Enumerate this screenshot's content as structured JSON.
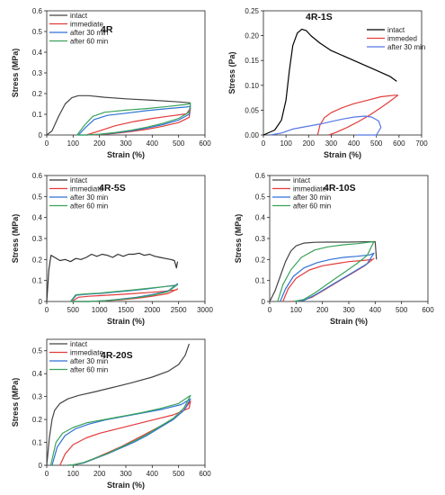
{
  "chart_data": [
    {
      "type": "line",
      "panel_label": "4R",
      "xlabel": "Strain (%)",
      "ylabel": "Stress (MPa)",
      "xlim": [
        0,
        600
      ],
      "ylim": [
        0,
        0.6
      ],
      "xticks": [
        0,
        100,
        200,
        300,
        400,
        500,
        600
      ],
      "yticks": [
        0,
        0.1,
        0.2,
        0.3,
        0.4,
        0.5,
        0.6
      ],
      "legend_position": "top-left",
      "series": [
        {
          "name": "intact",
          "color": "#444444",
          "x": [
            0,
            20,
            45,
            70,
            95,
            120,
            160,
            220,
            300,
            400,
            500,
            545
          ],
          "y": [
            0,
            0.02,
            0.09,
            0.15,
            0.18,
            0.19,
            0.19,
            0.182,
            0.175,
            0.168,
            0.16,
            0.155
          ]
        },
        {
          "name": "immediate",
          "color": "#e23b3b",
          "x": [
            150,
            200,
            260,
            330,
            400,
            470,
            530,
            545,
            540,
            500,
            440,
            380,
            320,
            260,
            200,
            150
          ],
          "y": [
            0,
            0.02,
            0.045,
            0.065,
            0.08,
            0.092,
            0.102,
            0.13,
            0.085,
            0.06,
            0.042,
            0.028,
            0.017,
            0.008,
            0.002,
            0
          ]
        },
        {
          "name": "after 30 min",
          "color": "#2f72d6",
          "x": [
            120,
            150,
            180,
            230,
            300,
            380,
            460,
            530,
            545,
            540,
            500,
            440,
            380,
            320,
            260,
            200,
            150,
            120
          ],
          "y": [
            0,
            0.04,
            0.075,
            0.095,
            0.105,
            0.118,
            0.128,
            0.135,
            0.14,
            0.1,
            0.072,
            0.05,
            0.034,
            0.02,
            0.01,
            0.003,
            0,
            0
          ]
        },
        {
          "name": "after 60 min",
          "color": "#3aa35a",
          "x": [
            115,
            145,
            175,
            220,
            300,
            380,
            460,
            530,
            545,
            540,
            500,
            440,
            380,
            320,
            260,
            200,
            150,
            115
          ],
          "y": [
            0,
            0.05,
            0.09,
            0.11,
            0.12,
            0.128,
            0.138,
            0.148,
            0.152,
            0.11,
            0.08,
            0.056,
            0.038,
            0.023,
            0.012,
            0.004,
            0,
            0
          ]
        }
      ]
    },
    {
      "type": "line",
      "panel_label": "4R-1S",
      "xlabel": "Strain (%)",
      "ylabel": "Stress (Pa)",
      "xlim": [
        0,
        700
      ],
      "ylim": [
        0,
        0.25
      ],
      "xticks": [
        0,
        100,
        200,
        300,
        400,
        500,
        600,
        700
      ],
      "yticks": [
        0.0,
        0.05,
        0.1,
        0.15,
        0.2,
        0.25
      ],
      "ytick_labels": [
        "0.00",
        "0.05",
        "0.10",
        "0.15",
        "0.20",
        "0.25"
      ],
      "legend_position": "top-right",
      "series": [
        {
          "name": "intact",
          "color": "#000000",
          "x": [
            0,
            50,
            80,
            100,
            115,
            130,
            150,
            170,
            190,
            210,
            250,
            300,
            400,
            500,
            560,
            590
          ],
          "y": [
            0,
            0.01,
            0.03,
            0.07,
            0.13,
            0.18,
            0.205,
            0.213,
            0.21,
            0.2,
            0.185,
            0.17,
            0.15,
            0.13,
            0.118,
            0.108
          ]
        },
        {
          "name": "immeded",
          "color": "#e23b3b",
          "x": [
            240,
            250,
            270,
            300,
            350,
            400,
            460,
            520,
            580,
            595,
            560,
            520,
            470,
            420,
            370,
            320,
            290
          ],
          "y": [
            0,
            0.02,
            0.035,
            0.045,
            0.055,
            0.063,
            0.07,
            0.077,
            0.08,
            0.08,
            0.068,
            0.055,
            0.04,
            0.027,
            0.015,
            0.005,
            0
          ]
        },
        {
          "name": "after 30 min",
          "color": "#5577e6",
          "x": [
            30,
            80,
            130,
            200,
            250,
            300,
            350,
            400,
            450,
            480,
            510,
            520,
            500,
            470,
            440,
            410
          ],
          "y": [
            0,
            0.004,
            0.012,
            0.018,
            0.022,
            0.027,
            0.032,
            0.036,
            0.038,
            0.036,
            0.028,
            0.015,
            0.0,
            0.0,
            0.0,
            0.0
          ]
        }
      ]
    },
    {
      "type": "line",
      "panel_label": "4R-5S",
      "xlabel": "Strain (%)",
      "ylabel": "Stress (MPa)",
      "xlim": [
        0,
        3000
      ],
      "ylim": [
        0,
        0.6
      ],
      "xticks": [
        0,
        500,
        1000,
        1500,
        2000,
        2500,
        3000
      ],
      "yticks": [
        0,
        0.1,
        0.2,
        0.3,
        0.4,
        0.5,
        0.6
      ],
      "legend_position": "top-left",
      "series": [
        {
          "name": "intact",
          "color": "#333333",
          "x": [
            0,
            40,
            80,
            150,
            250,
            350,
            450,
            550,
            650,
            750,
            850,
            950,
            1050,
            1150,
            1250,
            1350,
            1450,
            1550,
            1650,
            1750,
            1850,
            1950,
            2050,
            2150,
            2250,
            2350,
            2420,
            2460,
            2480
          ],
          "y": [
            0,
            0.15,
            0.22,
            0.21,
            0.195,
            0.2,
            0.19,
            0.205,
            0.2,
            0.21,
            0.225,
            0.215,
            0.225,
            0.22,
            0.21,
            0.225,
            0.215,
            0.225,
            0.225,
            0.23,
            0.22,
            0.225,
            0.215,
            0.21,
            0.205,
            0.2,
            0.195,
            0.16,
            0.19
          ]
        },
        {
          "name": "immediate",
          "color": "#e23b3b",
          "x": [
            480,
            600,
            800,
            1000,
            1300,
            1600,
            1900,
            2200,
            2450,
            2480,
            2300,
            2000,
            1700,
            1400,
            1100,
            800,
            600,
            480
          ],
          "y": [
            0,
            0.02,
            0.025,
            0.028,
            0.032,
            0.037,
            0.042,
            0.048,
            0.055,
            0.06,
            0.038,
            0.025,
            0.015,
            0.008,
            0.003,
            0,
            0,
            0
          ]
        },
        {
          "name": "after 30 min",
          "color": "#2f72d6",
          "x": [
            460,
            560,
            800,
            1000,
            1300,
            1600,
            1900,
            2200,
            2450,
            2480,
            2300,
            2000,
            1700,
            1400,
            1100,
            800,
            600,
            460
          ],
          "y": [
            0,
            0.03,
            0.035,
            0.038,
            0.045,
            0.052,
            0.06,
            0.07,
            0.078,
            0.085,
            0.05,
            0.033,
            0.02,
            0.011,
            0.004,
            0,
            0,
            0
          ]
        },
        {
          "name": "after 60 min",
          "color": "#3aa35a",
          "x": [
            450,
            550,
            800,
            1000,
            1300,
            1600,
            1900,
            2200,
            2450,
            2480,
            2300,
            2000,
            1700,
            1400,
            1100,
            800,
            600,
            450
          ],
          "y": [
            0,
            0.032,
            0.037,
            0.04,
            0.047,
            0.054,
            0.062,
            0.07,
            0.076,
            0.08,
            0.047,
            0.03,
            0.018,
            0.01,
            0.004,
            0,
            0,
            0
          ]
        }
      ]
    },
    {
      "type": "line",
      "panel_label": "4R-10S",
      "xlabel": "Strain (%)",
      "ylabel": "Stress (MPa)",
      "xlim": [
        0,
        600
      ],
      "ylim": [
        0,
        0.6
      ],
      "xticks": [
        0,
        100,
        200,
        300,
        400,
        500,
        600
      ],
      "yticks": [
        0,
        0.1,
        0.2,
        0.3,
        0.4,
        0.5,
        0.6
      ],
      "legend_position": "top-left",
      "series": [
        {
          "name": "intact",
          "color": "#444444",
          "x": [
            0,
            20,
            40,
            60,
            80,
            100,
            130,
            170,
            220,
            300,
            350,
            400,
            405
          ],
          "y": [
            0,
            0.05,
            0.12,
            0.19,
            0.24,
            0.265,
            0.278,
            0.282,
            0.283,
            0.283,
            0.284,
            0.285,
            0.2
          ]
        },
        {
          "name": "immediate",
          "color": "#e23b3b",
          "x": [
            50,
            70,
            100,
            150,
            200,
            250,
            300,
            350,
            390,
            395,
            360,
            320,
            280,
            240,
            200,
            160,
            120,
            80
          ],
          "y": [
            0,
            0.06,
            0.11,
            0.15,
            0.17,
            0.18,
            0.19,
            0.195,
            0.2,
            0.205,
            0.17,
            0.14,
            0.11,
            0.08,
            0.05,
            0.02,
            0.003,
            0
          ]
        },
        {
          "name": "after 30 min",
          "color": "#2f72d6",
          "x": [
            40,
            60,
            90,
            130,
            180,
            230,
            280,
            330,
            380,
            395,
            370,
            330,
            290,
            250,
            210,
            170,
            130,
            90
          ],
          "y": [
            0,
            0.06,
            0.12,
            0.16,
            0.185,
            0.2,
            0.21,
            0.215,
            0.222,
            0.23,
            0.18,
            0.15,
            0.12,
            0.09,
            0.06,
            0.03,
            0.005,
            0
          ]
        },
        {
          "name": "after 60 min",
          "color": "#3aa35a",
          "x": [
            30,
            50,
            80,
            120,
            170,
            220,
            280,
            330,
            380,
            395,
            370,
            330,
            290,
            250,
            210,
            170,
            130,
            90
          ],
          "y": [
            0,
            0.08,
            0.15,
            0.21,
            0.245,
            0.26,
            0.27,
            0.275,
            0.283,
            0.285,
            0.22,
            0.18,
            0.145,
            0.11,
            0.075,
            0.04,
            0.01,
            0
          ]
        }
      ]
    },
    {
      "type": "line",
      "panel_label": "4R-20S",
      "xlabel": "Strain (%)",
      "ylabel": "Stress (MPa)",
      "xlim": [
        0,
        600
      ],
      "ylim": [
        0,
        0.55
      ],
      "xticks": [
        0,
        100,
        200,
        300,
        400,
        500,
        600
      ],
      "yticks": [
        0.0,
        0.1,
        0.2,
        0.3,
        0.4,
        0.5
      ],
      "legend_position": "top-left",
      "series": [
        {
          "name": "intact",
          "color": "#444444",
          "x": [
            0,
            10,
            20,
            30,
            50,
            80,
            120,
            180,
            250,
            320,
            400,
            460,
            500,
            525,
            540
          ],
          "y": [
            0,
            0.12,
            0.2,
            0.24,
            0.27,
            0.29,
            0.305,
            0.32,
            0.34,
            0.36,
            0.385,
            0.41,
            0.44,
            0.48,
            0.53
          ]
        },
        {
          "name": "immediate",
          "color": "#e23b3b",
          "x": [
            50,
            70,
            100,
            150,
            200,
            270,
            340,
            410,
            480,
            540,
            545,
            520,
            480,
            430,
            380,
            330,
            280,
            230,
            180,
            140,
            100,
            80
          ],
          "y": [
            0,
            0.05,
            0.09,
            0.12,
            0.14,
            0.16,
            0.18,
            0.2,
            0.22,
            0.25,
            0.28,
            0.24,
            0.2,
            0.17,
            0.14,
            0.11,
            0.08,
            0.055,
            0.03,
            0.012,
            0.002,
            0
          ]
        },
        {
          "name": "after 30 min",
          "color": "#2f72d6",
          "x": [
            20,
            40,
            70,
            110,
            160,
            230,
            300,
            370,
            440,
            510,
            545,
            520,
            480,
            430,
            380,
            330,
            280,
            230,
            180,
            140,
            100,
            80
          ],
          "y": [
            0,
            0.08,
            0.13,
            0.16,
            0.18,
            0.2,
            0.215,
            0.23,
            0.245,
            0.265,
            0.29,
            0.24,
            0.2,
            0.165,
            0.13,
            0.1,
            0.075,
            0.05,
            0.028,
            0.01,
            0.002,
            0
          ]
        },
        {
          "name": "after 60 min",
          "color": "#3aa35a",
          "x": [
            15,
            35,
            60,
            100,
            150,
            220,
            290,
            360,
            430,
            500,
            545,
            520,
            480,
            430,
            380,
            330,
            280,
            230,
            180,
            140,
            100,
            80
          ],
          "y": [
            0,
            0.1,
            0.14,
            0.165,
            0.185,
            0.2,
            0.215,
            0.23,
            0.248,
            0.27,
            0.305,
            0.25,
            0.205,
            0.17,
            0.135,
            0.105,
            0.078,
            0.052,
            0.03,
            0.012,
            0.002,
            0
          ]
        }
      ]
    }
  ]
}
